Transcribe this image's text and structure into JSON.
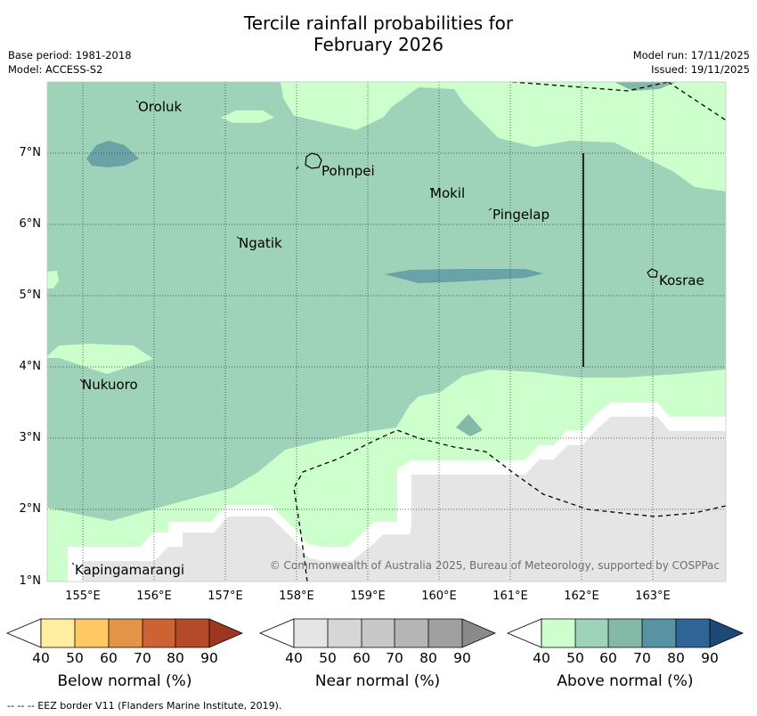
{
  "title_line1": "Tercile rainfall probabilities for",
  "title_line2": "February 2026",
  "base_period": "Base period: 1981-2018",
  "model": "Model: ACCESS-S2",
  "model_run": "Model run: 17/11/2025",
  "issued": "Issued: 19/11/2025",
  "lat_labels": [
    "7°N",
    "6°N",
    "5°N",
    "4°N",
    "3°N",
    "2°N",
    "1°N"
  ],
  "lon_labels": [
    "155°E",
    "156°E",
    "157°E",
    "158°E",
    "159°E",
    "160°E",
    "161°E",
    "162°E",
    "163°E"
  ],
  "places": {
    "oroluk": "Oroluk",
    "pohnpei": "Pohnpei",
    "mokil": "Mokil",
    "pingelap": "Pingelap",
    "ngatik": "Ngatik",
    "kosrae": "Kosrae",
    "nukuoro": "Nukuoro",
    "kapingamarangi": "Kapingamarangi"
  },
  "copyright": "© Commonwealth of Australia 2025, Bureau of Meteorology, supported by COSPPac",
  "colorbars": [
    {
      "title": "Below normal (%)",
      "ticks": [
        "40",
        "50",
        "60",
        "70",
        "80",
        "90"
      ],
      "colors": [
        "#ffffff",
        "#ffeda0",
        "#fec965",
        "#e39446",
        "#cf6232",
        "#b54a29",
        "#9e3622"
      ]
    },
    {
      "title": "Near normal (%)",
      "ticks": [
        "40",
        "50",
        "60",
        "70",
        "80",
        "90"
      ],
      "colors": [
        "#ffffff",
        "#e5e5e5",
        "#d6d6d6",
        "#c8c8c8",
        "#b5b5b5",
        "#a0a0a0",
        "#8a8a8a"
      ]
    },
    {
      "title": "Above normal (%)",
      "ticks": [
        "40",
        "50",
        "60",
        "70",
        "80",
        "90"
      ],
      "colors": [
        "#ffffff",
        "#ccffcc",
        "#9ed2b9",
        "#84b8a7",
        "#5793a3",
        "#2f6496",
        "#1d4877"
      ]
    }
  ],
  "footer": "--  --  -- EEZ border V11 (Flanders Marine Institute, 2019)."
}
